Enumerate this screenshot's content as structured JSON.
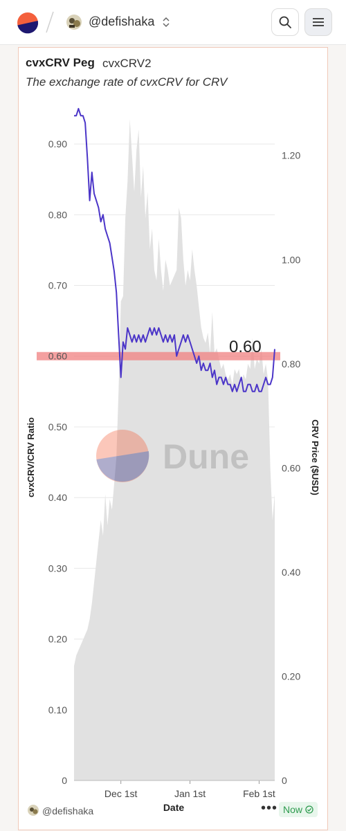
{
  "header": {
    "username": "@defishaka",
    "icons": [
      "dune-logo-icon",
      "user-avatar-icon",
      "chevron-updown-icon",
      "search-icon",
      "menu-icon"
    ]
  },
  "card": {
    "title": "cvxCRV Peg",
    "subtitle_tab": "cvxCRV2",
    "description": "The exchange rate of cvxCRV for CRV",
    "watermark": "Dune",
    "peg_annotation": "0.60",
    "footer": {
      "author": "@defishaka",
      "more_label": "•••",
      "status": "Now"
    }
  },
  "colors": {
    "ratio_line": "#4b35c8",
    "price_area": "#e1e1e1",
    "peg_band": "#f08080",
    "status_green": "#2e9b4f"
  },
  "chart_data": {
    "type": "line",
    "xlabel": "Date",
    "x_ticks": [
      "Dec 1st",
      "Jan 1st",
      "Feb 1st"
    ],
    "y_left": {
      "label": "cvxCRV/CRV Ratio",
      "ticks": [
        "0",
        "0.10",
        "0.20",
        "0.30",
        "0.40",
        "0.50",
        "0.60",
        "0.70",
        "0.80",
        "0.90"
      ],
      "ylim": [
        0,
        0.95
      ]
    },
    "y_right": {
      "label": "CRV Price ($USD)",
      "ticks": [
        "0",
        "0.20",
        "0.40",
        "0.60",
        "0.80",
        "1.00",
        "1.20"
      ],
      "ylim": [
        0,
        1.29
      ]
    },
    "x_range_days": [
      -21,
      69
    ],
    "peg_line": 0.6,
    "grid": true,
    "series": [
      {
        "axis": "left",
        "style": "line",
        "x": [
          -21,
          -20,
          -19,
          -18,
          -17,
          -16,
          -15,
          -14,
          -13,
          -12,
          -11,
          -10,
          -9,
          -8,
          -7,
          -6,
          -5,
          -4,
          -3,
          -2,
          -1,
          0,
          1,
          2,
          3,
          4,
          5,
          6,
          7,
          8,
          9,
          10,
          11,
          12,
          13,
          14,
          15,
          16,
          17,
          18,
          19,
          20,
          21,
          22,
          23,
          24,
          25,
          26,
          27,
          28,
          29,
          30,
          31,
          32,
          33,
          34,
          35,
          36,
          37,
          38,
          39,
          40,
          41,
          42,
          43,
          44,
          45,
          46,
          47,
          48,
          49,
          50,
          51,
          52,
          53,
          54,
          55,
          56,
          57,
          58,
          59,
          60,
          61,
          62,
          63,
          64,
          65,
          66,
          67,
          68,
          69
        ],
        "values": [
          0.94,
          0.94,
          0.95,
          0.94,
          0.94,
          0.93,
          0.88,
          0.82,
          0.86,
          0.83,
          0.82,
          0.81,
          0.79,
          0.8,
          0.78,
          0.77,
          0.76,
          0.74,
          0.72,
          0.69,
          0.63,
          0.57,
          0.62,
          0.61,
          0.64,
          0.63,
          0.62,
          0.63,
          0.62,
          0.63,
          0.62,
          0.63,
          0.62,
          0.63,
          0.64,
          0.63,
          0.64,
          0.63,
          0.64,
          0.63,
          0.62,
          0.63,
          0.62,
          0.63,
          0.62,
          0.63,
          0.6,
          0.61,
          0.62,
          0.63,
          0.62,
          0.63,
          0.62,
          0.61,
          0.6,
          0.59,
          0.6,
          0.58,
          0.59,
          0.58,
          0.58,
          0.59,
          0.57,
          0.58,
          0.56,
          0.57,
          0.57,
          0.56,
          0.57,
          0.56,
          0.56,
          0.55,
          0.56,
          0.55,
          0.56,
          0.57,
          0.55,
          0.55,
          0.56,
          0.56,
          0.55,
          0.55,
          0.56,
          0.55,
          0.55,
          0.56,
          0.57,
          0.56,
          0.56,
          0.57,
          0.61
        ]
      },
      {
        "axis": "right",
        "style": "area",
        "x": [
          -21,
          -20,
          -19,
          -18,
          -17,
          -16,
          -15,
          -14,
          -13,
          -12,
          -11,
          -10,
          -9,
          -8,
          -7,
          -6,
          -5,
          -4,
          -3,
          -2,
          -1,
          0,
          1,
          2,
          3,
          4,
          5,
          6,
          7,
          8,
          9,
          10,
          11,
          12,
          13,
          14,
          15,
          16,
          17,
          18,
          19,
          20,
          21,
          22,
          23,
          24,
          25,
          26,
          27,
          28,
          29,
          30,
          31,
          32,
          33,
          34,
          35,
          36,
          37,
          38,
          39,
          40,
          41,
          42,
          43,
          44,
          45,
          46,
          47,
          48,
          49,
          50,
          51,
          52,
          53,
          54,
          55,
          56,
          57,
          58,
          59,
          60,
          61,
          62,
          63,
          64,
          65,
          66,
          67,
          68,
          69
        ],
        "values": [
          0.22,
          0.24,
          0.25,
          0.26,
          0.27,
          0.28,
          0.29,
          0.31,
          0.34,
          0.38,
          0.42,
          0.46,
          0.5,
          0.47,
          0.55,
          0.49,
          0.54,
          0.52,
          0.57,
          0.62,
          0.75,
          0.92,
          0.93,
          1.08,
          1.15,
          1.27,
          1.2,
          1.13,
          1.21,
          1.25,
          1.12,
          1.18,
          1.08,
          1.13,
          1.02,
          1.06,
          0.98,
          0.96,
          1.04,
          0.98,
          0.94,
          1.0,
          0.98,
          0.95,
          0.96,
          0.97,
          0.98,
          1.1,
          1.08,
          1.0,
          0.95,
          0.98,
          0.96,
          1.02,
          0.98,
          0.95,
          0.91,
          0.87,
          0.85,
          0.84,
          0.86,
          0.82,
          0.9,
          0.82,
          0.83,
          0.81,
          0.79,
          0.8,
          0.78,
          0.77,
          0.78,
          0.76,
          0.79,
          0.78,
          0.79,
          0.76,
          0.78,
          0.77,
          0.8,
          0.79,
          0.85,
          0.79,
          0.81,
          0.8,
          0.83,
          0.78,
          0.8,
          0.77,
          0.6,
          0.5,
          0.55
        ]
      }
    ]
  }
}
